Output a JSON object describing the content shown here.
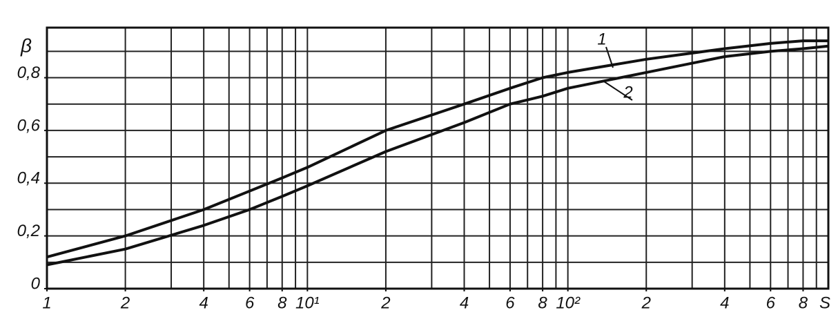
{
  "chart_data": {
    "type": "line",
    "x_label": "S",
    "y_label": "β",
    "x": [
      1,
      2,
      4,
      6,
      8,
      10,
      20,
      40,
      60,
      80,
      100,
      200,
      400,
      600,
      800,
      1000
    ],
    "series": [
      {
        "name": "1",
        "color": "#111111",
        "values": [
          0.12,
          0.2,
          0.3,
          0.37,
          0.42,
          0.46,
          0.6,
          0.7,
          0.76,
          0.8,
          0.82,
          0.87,
          0.91,
          0.93,
          0.94,
          0.94
        ]
      },
      {
        "name": "2",
        "color": "#111111",
        "values": [
          0.09,
          0.15,
          0.24,
          0.3,
          0.35,
          0.39,
          0.52,
          0.63,
          0.7,
          0.73,
          0.76,
          0.82,
          0.88,
          0.9,
          0.91,
          0.92
        ]
      }
    ],
    "xlim": [
      1,
      1000
    ],
    "x_log": true,
    "xticks": [
      1,
      2,
      4,
      6,
      8,
      {
        "value": 10,
        "label": "10¹"
      },
      {
        "value": 20,
        "label": "2"
      },
      {
        "value": 40,
        "label": "4"
      },
      {
        "value": 60,
        "label": "6"
      },
      {
        "value": 80,
        "label": "8"
      },
      {
        "value": 100,
        "label": "10²"
      },
      {
        "value": 200,
        "label": "2"
      },
      {
        "value": 400,
        "label": "4"
      },
      {
        "value": 600,
        "label": "6"
      },
      {
        "value": 800,
        "label": "8"
      }
    ],
    "x_grid": [
      1,
      2,
      3,
      4,
      5,
      6,
      7,
      8,
      9,
      10,
      20,
      30,
      40,
      50,
      60,
      70,
      80,
      90,
      100,
      200,
      300,
      400,
      500,
      600,
      700,
      800,
      900,
      1000
    ],
    "ylim": [
      0,
      0.99
    ],
    "yticks": [
      0,
      {
        "value": 0.2,
        "label": "0,2"
      },
      {
        "value": 0.4,
        "label": "0,4"
      },
      {
        "value": 0.6,
        "label": "0,6"
      },
      {
        "value": 0.8,
        "label": "0,8"
      }
    ],
    "y_grid": [
      0.1,
      0.2,
      0.3,
      0.4,
      0.5,
      0.6,
      0.7,
      0.8,
      0.9
    ],
    "grid": true
  }
}
